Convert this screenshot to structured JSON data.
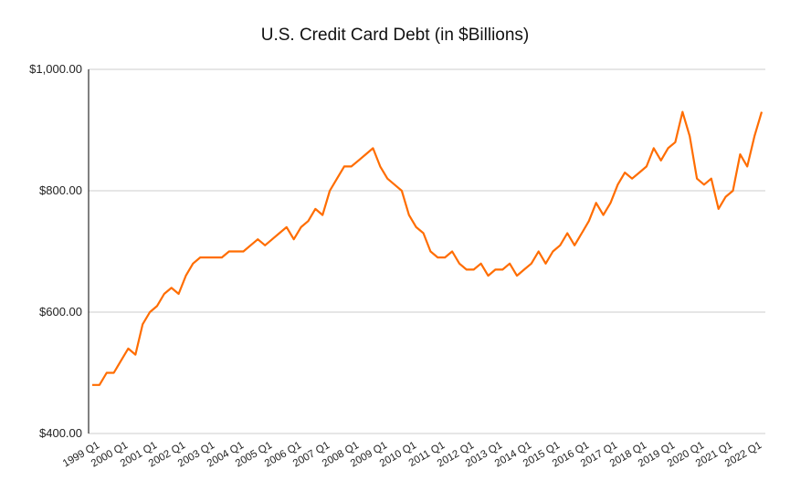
{
  "chart_data": {
    "type": "line",
    "title": "U.S. Credit Card Debt (in $Billions)",
    "xlabel": "",
    "ylabel": "",
    "ylim": [
      400,
      1000
    ],
    "yticks": [
      "$400.00",
      "$600.00",
      "$800.00",
      "$1,000.00"
    ],
    "ytick_values": [
      400,
      600,
      800,
      1000
    ],
    "grid": true,
    "legend": null,
    "x_tick_labels": [
      "1999 Q1",
      "2000 Q1",
      "2001 Q1",
      "2002 Q1",
      "2003 Q1",
      "2004 Q1",
      "2005 Q1",
      "2006 Q1",
      "2007 Q1",
      "2008 Q1",
      "2009 Q1",
      "2010 Q1",
      "2011 Q1",
      "2012 Q1",
      "2013 Q1",
      "2014 Q1",
      "2015 Q1",
      "2016 Q1",
      "2017 Q1",
      "2018 Q1",
      "2019 Q1",
      "2020 Q1",
      "2021 Q1",
      "2022 Q1"
    ],
    "series": [
      {
        "name": "Credit Card Debt",
        "color": "#ff6d01",
        "values": [
          480,
          480,
          500,
          500,
          520,
          540,
          530,
          580,
          600,
          610,
          630,
          640,
          630,
          660,
          680,
          690,
          690,
          690,
          690,
          700,
          700,
          700,
          710,
          720,
          710,
          720,
          730,
          740,
          720,
          740,
          750,
          770,
          760,
          800,
          820,
          840,
          840,
          850,
          860,
          870,
          840,
          820,
          810,
          800,
          760,
          740,
          730,
          700,
          690,
          690,
          700,
          680,
          670,
          670,
          680,
          660,
          670,
          670,
          680,
          660,
          670,
          680,
          700,
          680,
          700,
          710,
          730,
          710,
          730,
          750,
          780,
          760,
          780,
          810,
          830,
          820,
          830,
          840,
          870,
          850,
          870,
          880,
          930,
          890,
          820,
          810,
          820,
          770,
          790,
          800,
          860,
          840,
          890,
          930
        ]
      }
    ]
  },
  "colors": {
    "line": "#ff6d01",
    "grid": "#cccccc",
    "axis": "#000000"
  }
}
